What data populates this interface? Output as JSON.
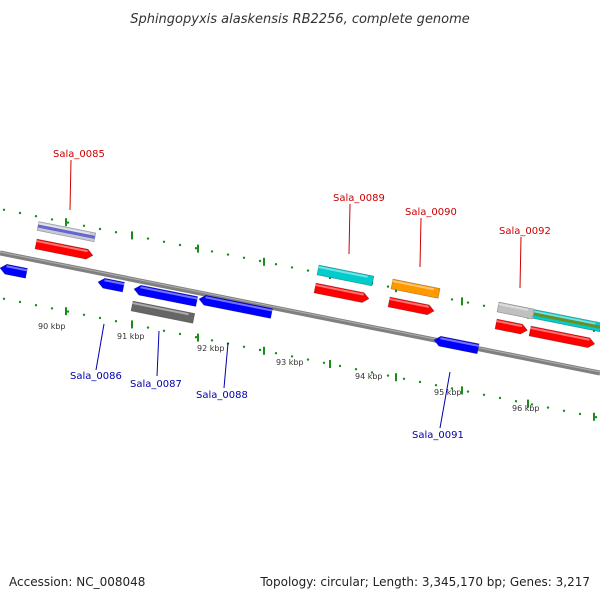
{
  "title": "Sphingopyxis alaskensis RB2256, complete genome",
  "footer": {
    "accession": "Accession: NC_008048",
    "stats": "Topology: circular; Length: 3,345,170 bp; Genes: 3,217"
  },
  "colors": {
    "backbone": "#808080",
    "tick": "#1a8c1a",
    "label_top": "#cc0000",
    "label_bottom": "#0000aa",
    "red": "#ff0000",
    "blue": "#0000ff",
    "cyan": "#00cccc",
    "orange": "#ff9900",
    "gray": "#666666",
    "light_gray": "#c0c0c0",
    "olive": "#6b8e23",
    "navy_stripe": "#6666cc"
  },
  "kbp_labels": [
    "90 kbp",
    "91 kbp",
    "92 kbp",
    "93 kbp",
    "94 kbp",
    "95 kbp",
    "96 kbp"
  ],
  "gene_labels_top": [
    "Sala_0085",
    "Sala_0089",
    "Sala_0090",
    "Sala_0092"
  ],
  "gene_labels_bottom": [
    "Sala_0086",
    "Sala_0087",
    "Sala_0088",
    "Sala_0091"
  ]
}
